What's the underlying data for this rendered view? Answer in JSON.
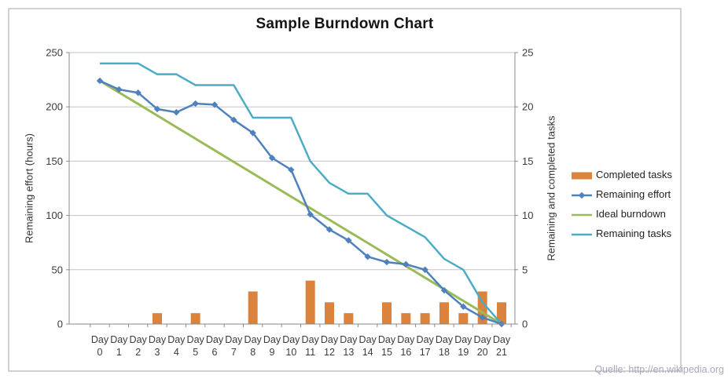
{
  "title": "Sample Burndown Chart",
  "source_note": "Quelle: http://en.wikipedia.org",
  "axes": {
    "left_title": "Remaining effort (hours)",
    "right_title": "Remaining and completed tasks",
    "left_ticks": [
      "250",
      "200",
      "150",
      "100",
      "50",
      "0"
    ],
    "right_ticks": [
      "25",
      "20",
      "15",
      "10",
      "5",
      "0"
    ],
    "x_prefix": "Day",
    "x_numbers": [
      "0",
      "1",
      "2",
      "3",
      "4",
      "5",
      "6",
      "7",
      "8",
      "9",
      "10",
      "11",
      "12",
      "13",
      "14",
      "15",
      "16",
      "17",
      "18",
      "19",
      "20",
      "21"
    ]
  },
  "legend": [
    {
      "label": "Completed tasks",
      "swatch": "bar",
      "color": "#DB833C"
    },
    {
      "label": "Remaining effort",
      "swatch": "line-marker",
      "color": "#4F81BD"
    },
    {
      "label": "Ideal burndown",
      "swatch": "line",
      "color": "#9BBB59"
    },
    {
      "label": "Remaining tasks",
      "swatch": "line",
      "color": "#4BACC6"
    }
  ],
  "colors": {
    "completed_tasks": "#DB833C",
    "remaining_effort": "#4F81BD",
    "ideal_burndown": "#9BBB59",
    "remaining_tasks": "#4BACC6",
    "gridline": "#C3C3C3",
    "axis_line": "#8A8A8A",
    "tick_text": "#3B3B3B",
    "frame_border": "#A6A6A6"
  },
  "chart_data": {
    "type": "combo",
    "title": "Sample Burndown Chart",
    "categories": [
      "Day 0",
      "Day 1",
      "Day 2",
      "Day 3",
      "Day 4",
      "Day 5",
      "Day 6",
      "Day 7",
      "Day 8",
      "Day 9",
      "Day 10",
      "Day 11",
      "Day 12",
      "Day 13",
      "Day 14",
      "Day 15",
      "Day 16",
      "Day 17",
      "Day 18",
      "Day 19",
      "Day 20",
      "Day 21"
    ],
    "left_axis": {
      "label": "Remaining effort (hours)",
      "min": 0,
      "max": 250,
      "step": 50
    },
    "right_axis": {
      "label": "Remaining and completed tasks",
      "min": 0,
      "max": 25,
      "step": 5
    },
    "grid": "horizontal",
    "legend_position": "right",
    "series": [
      {
        "name": "Completed tasks",
        "type": "bar",
        "axis": "right",
        "color": "#DB833C",
        "values": [
          0,
          0,
          0,
          1,
          0,
          1,
          0,
          0,
          3,
          0,
          0,
          4,
          2,
          1,
          0,
          2,
          1,
          1,
          2,
          1,
          3,
          2
        ]
      },
      {
        "name": "Remaining effort",
        "type": "line",
        "axis": "left",
        "marker": "diamond",
        "color": "#4F81BD",
        "values": [
          224,
          216,
          213,
          198,
          195,
          203,
          202,
          188,
          176,
          153,
          142,
          101,
          87,
          77,
          62,
          57,
          55,
          50,
          31,
          16,
          6,
          0
        ]
      },
      {
        "name": "Ideal burndown",
        "type": "line",
        "axis": "left",
        "color": "#9BBB59",
        "values": [
          224,
          213.3,
          202.7,
          192,
          181.3,
          170.7,
          160,
          149.3,
          138.7,
          128,
          117.3,
          106.7,
          96,
          85.3,
          74.7,
          64,
          53.3,
          42.7,
          32,
          21.3,
          10.7,
          0
        ]
      },
      {
        "name": "Remaining tasks",
        "type": "line",
        "axis": "right",
        "color": "#4BACC6",
        "values": [
          24,
          24,
          24,
          23,
          23,
          22,
          22,
          22,
          19,
          19,
          19,
          15,
          13,
          12,
          12,
          10,
          9,
          8,
          6,
          5,
          2,
          0
        ]
      }
    ]
  }
}
